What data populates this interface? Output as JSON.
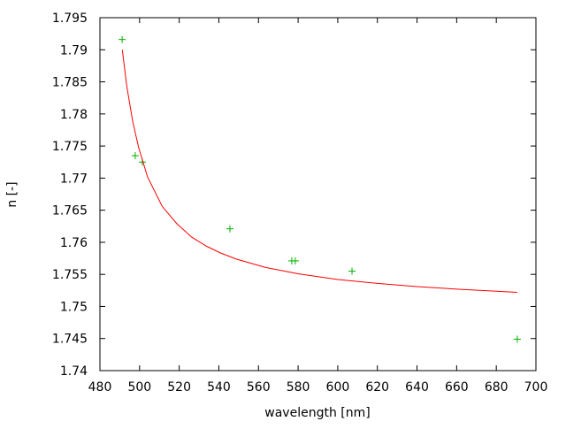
{
  "chart_data": {
    "type": "scatter",
    "title": "",
    "xlabel": "wavelength [nm]",
    "ylabel": "n [-]",
    "xlim": [
      480,
      700
    ],
    "ylim": [
      1.74,
      1.795
    ],
    "xticks": [
      480,
      500,
      520,
      540,
      560,
      580,
      600,
      620,
      640,
      660,
      680,
      700
    ],
    "yticks": [
      "1.74",
      "1.745",
      "1.75",
      "1.755",
      "1.76",
      "1.765",
      "1.77",
      "1.775",
      "1.78",
      "1.785",
      "1.79",
      "1.795"
    ],
    "grid": false,
    "series": [
      {
        "kind": "points",
        "color": "#00b000",
        "marker": "plus",
        "x": [
          491.2,
          497.8,
          501.4,
          545.6,
          576.8,
          578.6,
          607.2,
          690.6
        ],
        "y": [
          1.7916,
          1.7735,
          1.7725,
          1.7621,
          1.7571,
          1.7571,
          1.7555,
          1.7449
        ]
      },
      {
        "kind": "line",
        "color": "#ff0000",
        "x": [
          491.3,
          493.5,
          496.5,
          499.5,
          504,
          511.4,
          518.8,
          526.3,
          533.7,
          541.1,
          548.6,
          563.4,
          580,
          600,
          620,
          640,
          660,
          690.6
        ],
        "y": [
          1.79,
          1.7844,
          1.7789,
          1.7748,
          1.7702,
          1.7656,
          1.7629,
          1.7608,
          1.7594,
          1.7583,
          1.7574,
          1.7561,
          1.7551,
          1.7542,
          1.7536,
          1.7531,
          1.7527,
          1.7522
        ]
      }
    ]
  }
}
